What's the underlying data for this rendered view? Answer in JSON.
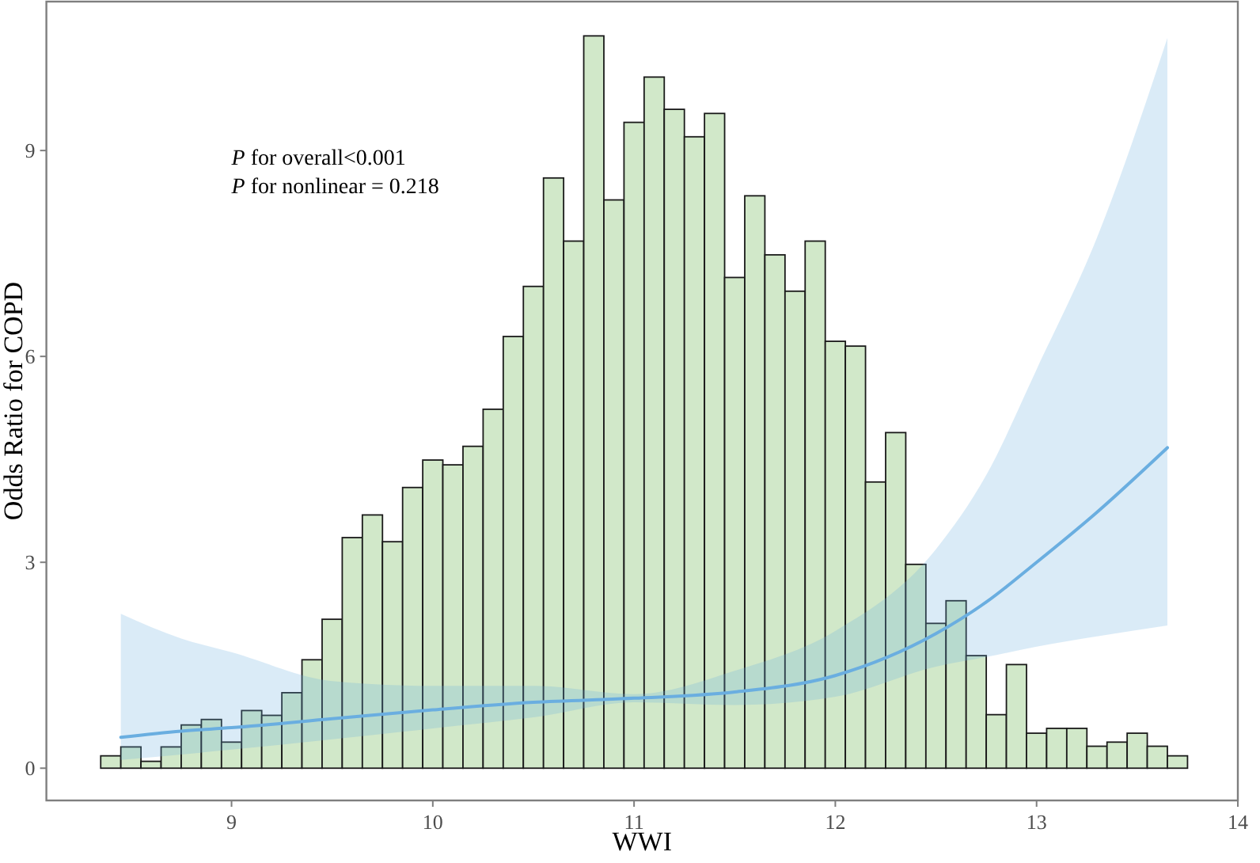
{
  "chart_data": {
    "type": "histogram",
    "xlabel": "WWI",
    "ylabel": "Odds Ratio for COPD",
    "annotations": [
      "P for overall<0.001",
      "P for nonlinear = 0.218"
    ],
    "bins": [
      8.35,
      8.45,
      8.55,
      8.65,
      8.75,
      8.85,
      8.95,
      9.05,
      9.15,
      9.25,
      9.35,
      9.45,
      9.55,
      9.65,
      9.75,
      9.85,
      9.95,
      10.05,
      10.15,
      10.25,
      10.35,
      10.45,
      10.55,
      10.65,
      10.75,
      10.85,
      10.95,
      11.05,
      11.15,
      11.25,
      11.35,
      11.45,
      11.55,
      11.65,
      11.75,
      11.85,
      11.95,
      12.05,
      12.15,
      12.25,
      12.35,
      12.45,
      12.55,
      12.65,
      12.75,
      12.85,
      12.95,
      13.05,
      13.15,
      13.25,
      13.35,
      13.45,
      13.55,
      13.65,
      13.75
    ],
    "values": [
      0.18,
      0.31,
      0.1,
      0.31,
      0.63,
      0.71,
      0.38,
      0.84,
      0.77,
      1.1,
      1.58,
      2.17,
      3.36,
      3.69,
      3.3,
      4.09,
      4.49,
      4.42,
      4.69,
      5.23,
      6.29,
      7.02,
      8.6,
      7.68,
      10.67,
      8.28,
      9.41,
      10.07,
      9.6,
      9.2,
      9.54,
      7.15,
      8.34,
      7.48,
      6.95,
      7.68,
      6.22,
      6.15,
      4.17,
      4.89,
      2.97,
      2.11,
      2.44,
      1.64,
      0.78,
      1.51,
      0.51,
      0.58,
      0.58,
      0.32,
      0.38,
      0.51,
      0.32,
      0.18
    ],
    "color": "#d1e8c9",
    "series": [
      {
        "type": "line",
        "color": "#6aaee0",
        "x": [
          8.45,
          8.75,
          9.0,
          9.5,
          10.0,
          10.5,
          11.0,
          11.5,
          12.0,
          12.5,
          12.75,
          13.0,
          13.3,
          13.65
        ],
        "values": [
          0.45,
          0.54,
          0.59,
          0.72,
          0.85,
          0.96,
          1.02,
          1.11,
          1.35,
          1.96,
          2.42,
          3.0,
          3.73,
          4.67
        ],
        "lower": [
          0.12,
          0.2,
          0.27,
          0.42,
          0.58,
          0.74,
          0.96,
          0.92,
          1.04,
          1.48,
          1.62,
          1.77,
          1.92,
          2.08
        ],
        "upper": [
          2.25,
          1.89,
          1.69,
          1.27,
          1.2,
          1.2,
          1.08,
          1.42,
          2.0,
          3.19,
          4.27,
          5.81,
          7.73,
          10.64
        ]
      }
    ],
    "xlim": [
      8.08,
      14.0
    ],
    "xticks": [
      9,
      10,
      11,
      12,
      13,
      14
    ],
    "ylim": [
      -0.47,
      11.17
    ],
    "yticks": [
      0,
      3,
      6,
      9
    ],
    "grid": false
  }
}
